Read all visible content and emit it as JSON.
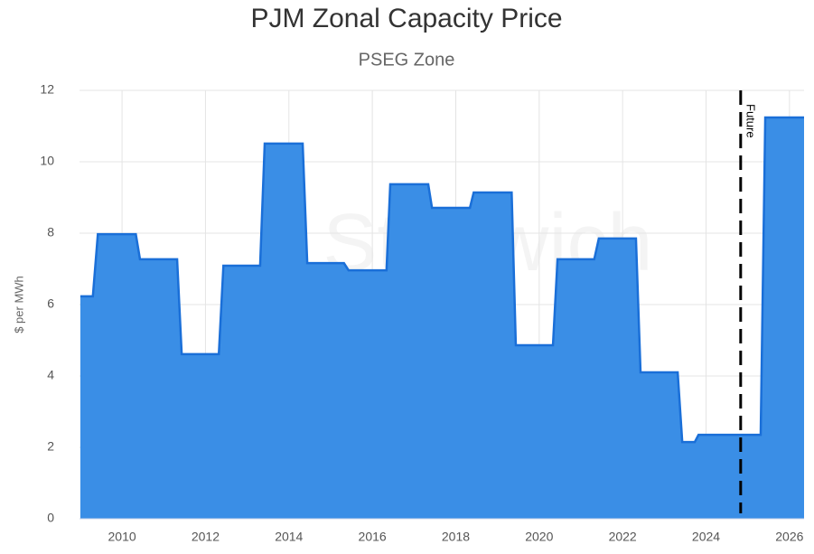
{
  "chart_data": {
    "type": "area",
    "title": "PJM Zonal Capacity Price",
    "subtitle": "PSEG Zone",
    "y_label": "$ per MWh",
    "watermark": "Stanwich",
    "x": [
      2009.0,
      2009.3,
      2009.42,
      2010.33,
      2010.43,
      2011.32,
      2011.43,
      2012.32,
      2012.43,
      2013.31,
      2013.42,
      2014.33,
      2014.44,
      2015.32,
      2015.43,
      2016.34,
      2016.43,
      2017.34,
      2017.43,
      2018.34,
      2018.43,
      2019.34,
      2019.44,
      2020.33,
      2020.44,
      2021.32,
      2021.43,
      2022.32,
      2022.43,
      2023.32,
      2023.43,
      2023.73,
      2023.82,
      2025.31,
      2025.42,
      2026.35
    ],
    "series": [
      {
        "color": "#3a8ee6",
        "values": [
          6.23,
          6.23,
          7.97,
          7.97,
          7.27,
          7.27,
          4.61,
          4.61,
          7.09,
          7.09,
          10.51,
          10.51,
          7.16,
          7.16,
          6.96,
          6.96,
          9.37,
          9.37,
          8.71,
          8.71,
          9.14,
          9.14,
          4.86,
          4.86,
          7.27,
          7.27,
          7.85,
          7.85,
          4.1,
          4.1,
          2.15,
          2.15,
          2.35,
          2.35,
          11.24,
          11.24
        ]
      }
    ],
    "xlim": [
      2008.98,
      2026.35
    ],
    "xticks": [
      2010,
      2012,
      2014,
      2016,
      2018,
      2020,
      2022,
      2024,
      2026
    ],
    "ylim": [
      0,
      12
    ],
    "yticks": [
      0,
      2,
      4,
      6,
      8,
      10,
      12
    ],
    "grid": true,
    "annotations": [
      {
        "x": 2024.83,
        "label": "Future"
      }
    ]
  }
}
